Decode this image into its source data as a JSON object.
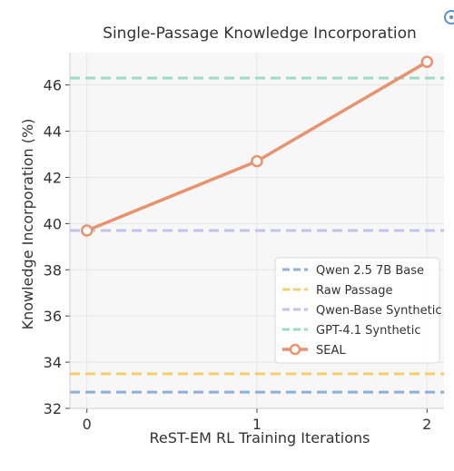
{
  "chart_data": {
    "type": "line",
    "title": "Single-Passage Knowledge Incorporation",
    "xlabel": "ReST-EM RL Training Iterations",
    "ylabel": "Knowledge Incorporation (%)",
    "x": [
      0,
      1,
      2
    ],
    "xlim": [
      -0.1,
      2.1
    ],
    "ylim": [
      32,
      47.4
    ],
    "xticks": [
      0,
      1,
      2
    ],
    "yticks": [
      32,
      34,
      36,
      38,
      40,
      42,
      44,
      46
    ],
    "xtick_labels": [
      "0",
      "1",
      "2"
    ],
    "ytick_labels": [
      "32",
      "34",
      "36",
      "38",
      "40",
      "42",
      "44",
      "46"
    ],
    "grid": true,
    "legend_position": "lower-right",
    "baselines": [
      {
        "name": "Qwen 2.5 7B Base",
        "value": 32.7,
        "color": "#8eb0d8",
        "style": "dashed"
      },
      {
        "name": "Raw Passage",
        "value": 33.5,
        "color": "#f6cf6a",
        "style": "dashed"
      },
      {
        "name": "Qwen-Base Synthetic",
        "value": 39.7,
        "color": "#c5c0ec",
        "style": "dashed"
      },
      {
        "name": "GPT-4.1 Synthetic",
        "value": 46.3,
        "color": "#9ddcc2",
        "style": "dashed"
      }
    ],
    "series": [
      {
        "name": "SEAL",
        "values": [
          39.7,
          42.7,
          47.0
        ],
        "color": "#e8926e",
        "marker": "circle"
      }
    ]
  }
}
